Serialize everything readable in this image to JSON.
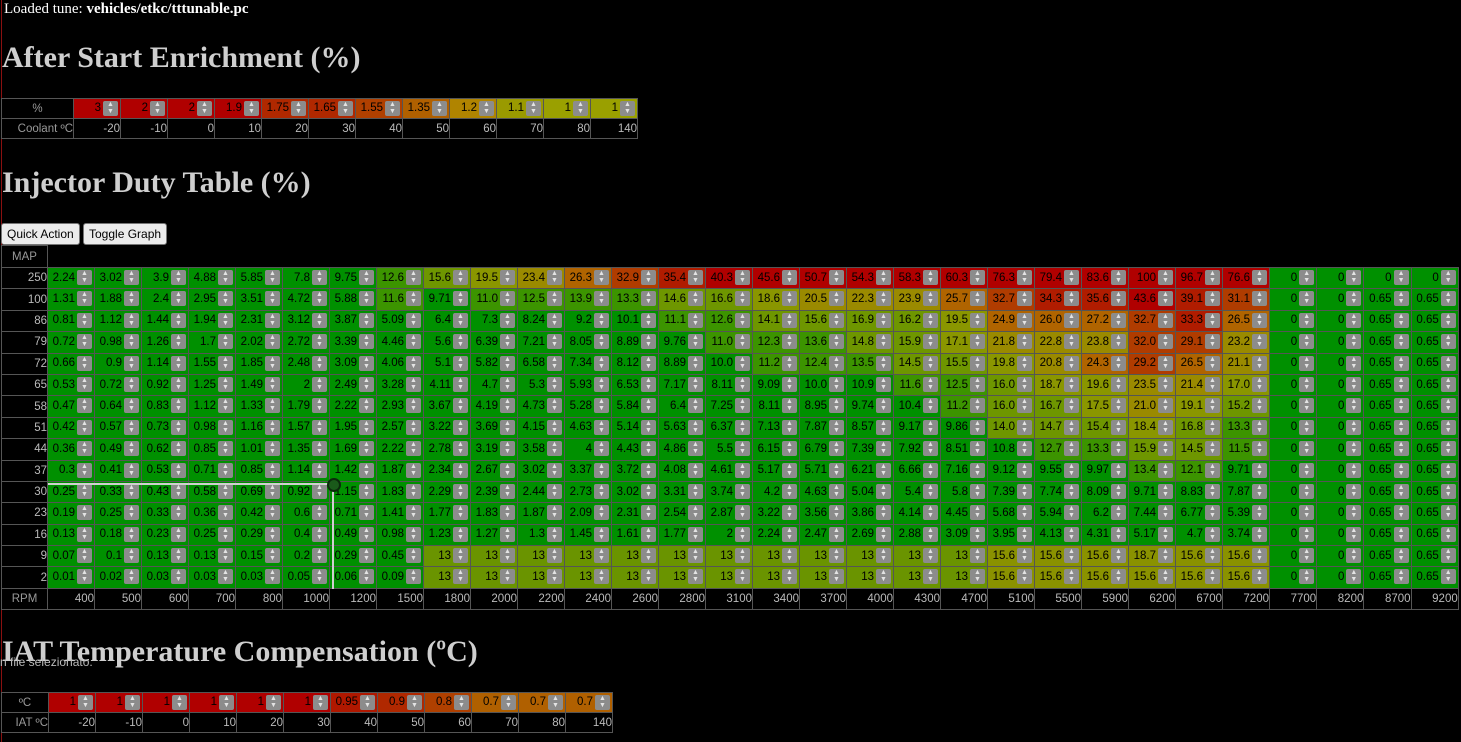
{
  "loaded": {
    "label": "Loaded tune:",
    "path": "vehicles/etkc/tttunable.pc"
  },
  "ase": {
    "title": "After Start Enrichment (%)",
    "row_label": "%",
    "axis_label": "Coolant ºC",
    "values": [
      "3",
      "2",
      "2",
      "1.9",
      "1.75",
      "1.65",
      "1.55",
      "1.35",
      "1.2",
      "1.1",
      "1",
      "1"
    ],
    "axis": [
      "-20",
      "-10",
      "0",
      "10",
      "20",
      "30",
      "40",
      "50",
      "60",
      "70",
      "80",
      "140"
    ],
    "colors": [
      "#b00000",
      "#b00000",
      "#b00000",
      "#b00000",
      "#b02800",
      "#b02800",
      "#b04000",
      "#b06000",
      "#b08400",
      "#9a9a00",
      "#9aa000",
      "#9aa000"
    ]
  },
  "injector": {
    "title": "Injector Duty Table (%)",
    "quick_action_label": "Quick Action",
    "toggle_graph_label": "Toggle Graph",
    "map_label": "MAP",
    "rpm_label": "RPM",
    "map_axis": [
      "250",
      "100",
      "86",
      "79",
      "72",
      "65",
      "58",
      "51",
      "44",
      "37",
      "30",
      "23",
      "16",
      "9",
      "2"
    ],
    "rpm_axis": [
      "400",
      "500",
      "600",
      "700",
      "800",
      "1000",
      "1200",
      "1500",
      "1800",
      "2000",
      "2200",
      "2400",
      "2600",
      "2800",
      "3100",
      "3400",
      "3700",
      "4000",
      "4300",
      "4700",
      "5100",
      "5500",
      "5900",
      "6200",
      "6700",
      "7200",
      "7700",
      "8200",
      "8700",
      "9200"
    ],
    "rows": [
      [
        "2.24",
        "3.02",
        "3.9",
        "4.88",
        "5.85",
        "7.8",
        "9.75",
        "12.6",
        "15.6",
        "19.5",
        "23.4",
        "26.3",
        "32.9",
        "35.4",
        "40.3",
        "45.6",
        "50.7",
        "54.3",
        "58.3",
        "60.3",
        "76.3",
        "79.4",
        "83.6",
        "100",
        "96.7",
        "76.6",
        "0",
        "0",
        "0",
        "0"
      ],
      [
        "1.31",
        "1.88",
        "2.4",
        "2.95",
        "3.51",
        "4.72",
        "5.88",
        "11.6",
        "9.71",
        "11.0",
        "12.5",
        "13.9",
        "13.3",
        "14.6",
        "16.6",
        "18.6",
        "20.5",
        "22.3",
        "23.9",
        "25.7",
        "32.7",
        "34.3",
        "35.6",
        "43.6",
        "39.1",
        "31.1",
        "0",
        "0",
        "0.65",
        "0.65"
      ],
      [
        "0.81",
        "1.12",
        "1.44",
        "1.94",
        "2.31",
        "3.12",
        "3.87",
        "5.09",
        "6.4",
        "7.3",
        "8.24",
        "9.2",
        "10.1",
        "11.1",
        "12.6",
        "14.1",
        "15.6",
        "16.9",
        "16.2",
        "19.5",
        "24.9",
        "26.0",
        "27.2",
        "32.7",
        "33.3",
        "26.5",
        "0",
        "0",
        "0.65",
        "0.65"
      ],
      [
        "0.72",
        "0.98",
        "1.26",
        "1.7",
        "2.02",
        "2.72",
        "3.39",
        "4.46",
        "5.6",
        "6.39",
        "7.21",
        "8.05",
        "8.89",
        "9.76",
        "11.0",
        "12.3",
        "13.6",
        "14.8",
        "15.9",
        "17.1",
        "21.8",
        "22.8",
        "23.8",
        "32.0",
        "29.1",
        "23.2",
        "0",
        "0",
        "0.65",
        "0.65"
      ],
      [
        "0.66",
        "0.9",
        "1.14",
        "1.55",
        "1.85",
        "2.48",
        "3.09",
        "4.06",
        "5.1",
        "5.82",
        "6.58",
        "7.34",
        "8.12",
        "8.89",
        "10.0",
        "11.2",
        "12.4",
        "13.5",
        "14.5",
        "15.5",
        "19.8",
        "20.8",
        "24.3",
        "29.2",
        "26.5",
        "21.1",
        "0",
        "0",
        "0.65",
        "0.65"
      ],
      [
        "0.53",
        "0.72",
        "0.92",
        "1.25",
        "1.49",
        "2",
        "2.49",
        "3.28",
        "4.11",
        "4.7",
        "5.3",
        "5.93",
        "6.53",
        "7.17",
        "8.11",
        "9.09",
        "10.0",
        "10.9",
        "11.6",
        "12.5",
        "16.0",
        "18.7",
        "19.6",
        "23.5",
        "21.4",
        "17.0",
        "0",
        "0",
        "0.65",
        "0.65"
      ],
      [
        "0.47",
        "0.64",
        "0.83",
        "1.12",
        "1.33",
        "1.79",
        "2.22",
        "2.93",
        "3.67",
        "4.19",
        "4.73",
        "5.28",
        "5.84",
        "6.4",
        "7.25",
        "8.11",
        "8.95",
        "9.74",
        "10.4",
        "11.2",
        "16.0",
        "16.7",
        "17.5",
        "21.0",
        "19.1",
        "15.2",
        "0",
        "0",
        "0.65",
        "0.65"
      ],
      [
        "0.42",
        "0.57",
        "0.73",
        "0.98",
        "1.16",
        "1.57",
        "1.95",
        "2.57",
        "3.22",
        "3.69",
        "4.15",
        "4.63",
        "5.14",
        "5.63",
        "6.37",
        "7.13",
        "7.87",
        "8.57",
        "9.17",
        "9.86",
        "14.0",
        "14.7",
        "15.4",
        "18.4",
        "16.8",
        "13.3",
        "0",
        "0",
        "0.65",
        "0.65"
      ],
      [
        "0.36",
        "0.49",
        "0.62",
        "0.85",
        "1.01",
        "1.35",
        "1.69",
        "2.22",
        "2.78",
        "3.19",
        "3.58",
        "4",
        "4.43",
        "4.86",
        "5.5",
        "6.15",
        "6.79",
        "7.39",
        "7.92",
        "8.51",
        "10.8",
        "12.7",
        "13.3",
        "15.9",
        "14.5",
        "11.5",
        "0",
        "0",
        "0.65",
        "0.65"
      ],
      [
        "0.3",
        "0.41",
        "0.53",
        "0.71",
        "0.85",
        "1.14",
        "1.42",
        "1.87",
        "2.34",
        "2.67",
        "3.02",
        "3.37",
        "3.72",
        "4.08",
        "4.61",
        "5.17",
        "5.71",
        "6.21",
        "6.66",
        "7.16",
        "9.12",
        "9.55",
        "9.97",
        "13.4",
        "12.1",
        "9.71",
        "0",
        "0",
        "0.65",
        "0.65"
      ],
      [
        "0.25",
        "0.33",
        "0.43",
        "0.58",
        "0.69",
        "0.92",
        "1.15",
        "1.83",
        "2.29",
        "2.39",
        "2.44",
        "2.73",
        "3.02",
        "3.31",
        "3.74",
        "4.2",
        "4.63",
        "5.04",
        "5.4",
        "5.8",
        "7.39",
        "7.74",
        "8.09",
        "9.71",
        "8.83",
        "7.87",
        "0",
        "0",
        "0.65",
        "0.65"
      ],
      [
        "0.19",
        "0.25",
        "0.33",
        "0.36",
        "0.42",
        "0.6",
        "0.71",
        "1.41",
        "1.77",
        "1.83",
        "1.87",
        "2.09",
        "2.31",
        "2.54",
        "2.87",
        "3.22",
        "3.56",
        "3.86",
        "4.14",
        "4.45",
        "5.68",
        "5.94",
        "6.2",
        "7.44",
        "6.77",
        "5.39",
        "0",
        "0",
        "0.65",
        "0.65"
      ],
      [
        "0.13",
        "0.18",
        "0.23",
        "0.25",
        "0.29",
        "0.4",
        "0.49",
        "0.98",
        "1.23",
        "1.27",
        "1.3",
        "1.45",
        "1.61",
        "1.77",
        "2",
        "2.24",
        "2.47",
        "2.69",
        "2.88",
        "3.09",
        "3.95",
        "4.13",
        "4.31",
        "5.17",
        "4.7",
        "3.74",
        "0",
        "0",
        "0.65",
        "0.65"
      ],
      [
        "0.07",
        "0.1",
        "0.13",
        "0.13",
        "0.15",
        "0.2",
        "0.29",
        "0.45",
        "13",
        "13",
        "13",
        "13",
        "13",
        "13",
        "13",
        "13",
        "13",
        "13",
        "13",
        "13",
        "15.6",
        "15.6",
        "15.6",
        "18.7",
        "15.6",
        "15.6",
        "0",
        "0",
        "0.65",
        "0.65"
      ],
      [
        "0.01",
        "0.02",
        "0.03",
        "0.03",
        "0.03",
        "0.05",
        "0.06",
        "0.09",
        "13",
        "13",
        "13",
        "13",
        "13",
        "13",
        "13",
        "13",
        "13",
        "13",
        "13",
        "13",
        "15.6",
        "15.6",
        "15.6",
        "15.6",
        "15.6",
        "15.6",
        "0",
        "0",
        "0.65",
        "0.65"
      ]
    ]
  },
  "file_note": "n file selezionato.",
  "iat": {
    "title": "IAT Temperature Compensation (ºC)",
    "row_label": "ºC",
    "axis_label": "IAT ºC",
    "values": [
      "1",
      "1",
      "1",
      "1",
      "1",
      "1",
      "0.95",
      "0.9",
      "0.8",
      "0.7",
      "0.7",
      "0.7"
    ],
    "axis": [
      "-20",
      "-10",
      "0",
      "10",
      "20",
      "30",
      "40",
      "50",
      "60",
      "70",
      "80",
      "140"
    ],
    "colors": [
      "#b00000",
      "#b00000",
      "#b00000",
      "#b00000",
      "#b00000",
      "#b00000",
      "#b01800",
      "#b02800",
      "#b04000",
      "#b06000",
      "#b06000",
      "#b06000"
    ]
  }
}
